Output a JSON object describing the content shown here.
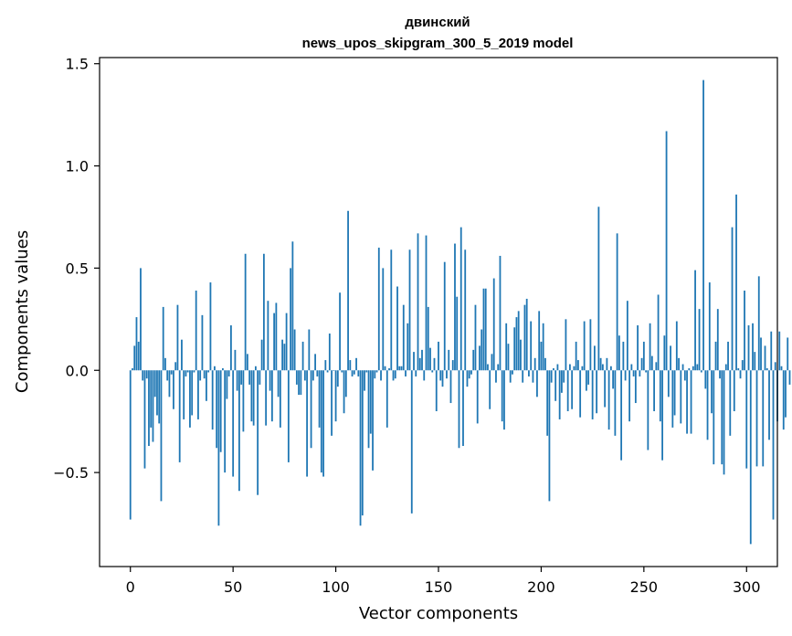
{
  "chart_data": {
    "type": "bar",
    "title_line1": "двинский",
    "title_line2": "news_upos_skipgram_300_5_2019 model",
    "xlabel": "Vector components",
    "ylabel": "Components values",
    "xlim": [
      -15,
      315
    ],
    "ylim": [
      -0.96,
      1.53
    ],
    "x_ticks": [
      0,
      50,
      100,
      150,
      200,
      250,
      300
    ],
    "x_tick_labels": [
      "0",
      "50",
      "100",
      "150",
      "200",
      "250",
      "300"
    ],
    "y_ticks": [
      -0.5,
      0.0,
      0.5,
      1.0,
      1.5
    ],
    "y_tick_labels": [
      "−0.5",
      "0.0",
      "0.5",
      "1.0",
      "1.5"
    ],
    "bar_color": "#1f77b4",
    "grid": false,
    "legend": "none",
    "values": [
      -0.73,
      0.01,
      0.12,
      0.26,
      0.14,
      0.5,
      -0.05,
      -0.48,
      -0.04,
      -0.37,
      -0.28,
      -0.35,
      -0.13,
      -0.22,
      -0.26,
      -0.64,
      0.31,
      0.06,
      -0.05,
      -0.13,
      -0.02,
      -0.19,
      0.04,
      0.32,
      -0.45,
      0.15,
      -0.24,
      -0.03,
      -0.01,
      -0.28,
      -0.22,
      -0.01,
      0.39,
      -0.24,
      -0.05,
      0.27,
      -0.04,
      -0.15,
      -0.01,
      0.43,
      -0.29,
      0.02,
      -0.38,
      -0.76,
      -0.4,
      0.01,
      -0.5,
      -0.14,
      -0.03,
      0.22,
      -0.52,
      0.1,
      -0.1,
      -0.59,
      -0.07,
      -0.3,
      0.57,
      0.08,
      -0.07,
      -0.25,
      -0.27,
      0.02,
      -0.61,
      -0.07,
      0.15,
      0.57,
      -0.27,
      0.34,
      -0.1,
      -0.25,
      0.28,
      0.33,
      -0.13,
      -0.28,
      0.15,
      0.13,
      0.28,
      -0.45,
      0.5,
      0.63,
      0.2,
      -0.07,
      -0.12,
      -0.12,
      0.14,
      -0.05,
      -0.52,
      0.2,
      -0.38,
      -0.05,
      0.08,
      -0.03,
      -0.28,
      -0.5,
      -0.52,
      0.05,
      -0.01,
      0.18,
      -0.32,
      0.0,
      -0.25,
      -0.08,
      0.38,
      -0.01,
      -0.21,
      -0.13,
      0.78,
      0.05,
      -0.03,
      -0.02,
      0.06,
      -0.03,
      -0.76,
      -0.71,
      -0.1,
      -0.01,
      -0.38,
      -0.31,
      -0.49,
      -0.04,
      -0.01,
      0.6,
      -0.05,
      0.5,
      0.02,
      -0.28,
      0.01,
      0.59,
      -0.05,
      -0.04,
      0.41,
      0.02,
      0.02,
      0.32,
      -0.03,
      0.23,
      0.59,
      -0.7,
      0.09,
      -0.03,
      0.67,
      0.06,
      0.1,
      -0.05,
      0.66,
      0.31,
      0.11,
      -0.01,
      0.06,
      -0.2,
      0.14,
      -0.05,
      -0.08,
      0.53,
      -0.04,
      0.1,
      -0.16,
      0.05,
      0.62,
      0.36,
      -0.38,
      0.7,
      -0.37,
      0.59,
      -0.08,
      -0.04,
      -0.02,
      0.1,
      0.32,
      -0.26,
      0.12,
      0.2,
      0.4,
      0.4,
      0.03,
      -0.19,
      0.08,
      0.45,
      -0.06,
      0.03,
      0.56,
      -0.25,
      -0.29,
      0.23,
      0.13,
      -0.06,
      -0.02,
      0.21,
      0.26,
      0.29,
      0.15,
      -0.06,
      0.32,
      0.35,
      -0.03,
      0.24,
      -0.06,
      0.06,
      -0.13,
      0.29,
      0.14,
      0.23,
      0.06,
      -0.32,
      -0.64,
      -0.06,
      0.01,
      -0.15,
      0.03,
      -0.24,
      -0.11,
      -0.06,
      0.25,
      -0.2,
      0.03,
      -0.19,
      0.02,
      0.14,
      0.05,
      -0.23,
      0.02,
      0.24,
      -0.1,
      -0.07,
      0.25,
      -0.24,
      0.12,
      -0.21,
      0.8,
      0.06,
      0.03,
      -0.18,
      0.06,
      -0.29,
      0.02,
      -0.09,
      -0.32,
      0.67,
      0.17,
      -0.44,
      0.14,
      -0.05,
      0.34,
      -0.25,
      0.03,
      -0.03,
      -0.16,
      0.22,
      -0.03,
      0.06,
      0.14,
      -0.01,
      -0.39,
      0.23,
      0.07,
      -0.2,
      0.04,
      0.37,
      -0.25,
      -0.44,
      0.17,
      1.17,
      -0.13,
      0.12,
      -0.28,
      -0.22,
      0.24,
      0.06,
      -0.26,
      0.03,
      -0.05,
      -0.31,
      0.01,
      -0.31,
      0.02,
      0.49,
      0.03,
      0.3,
      -0.01,
      1.42,
      -0.09,
      -0.34,
      0.43,
      -0.21,
      -0.46,
      0.14,
      0.3,
      -0.04,
      -0.46,
      -0.51,
      0.03,
      0.14,
      -0.32,
      0.7,
      -0.2,
      0.86,
      0.01,
      -0.04,
      0.05,
      0.39,
      -0.48,
      0.22,
      -0.85,
      0.23,
      0.09,
      -0.47,
      0.46,
      0.16,
      -0.47,
      0.12,
      0.01,
      -0.34,
      0.19,
      -0.73,
      0.04,
      -0.25,
      0.19,
      0.02,
      -0.29,
      -0.23,
      0.16,
      -0.07
    ]
  }
}
